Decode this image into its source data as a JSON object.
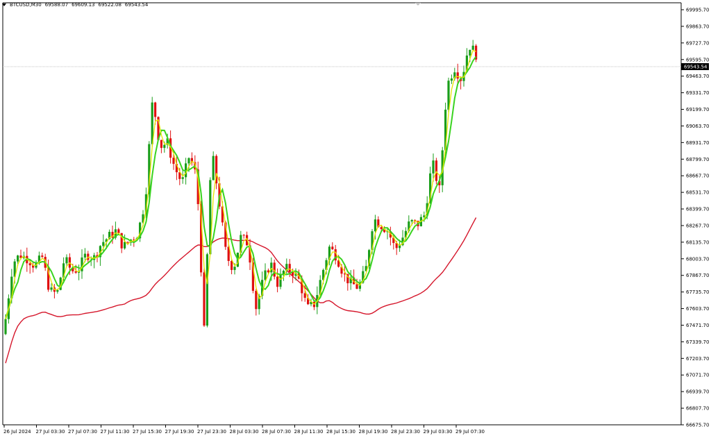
{
  "header": {
    "symbol": "BTCUSD,M30",
    "open": "69588.07",
    "high": "69609.13",
    "low": "69522.08",
    "close": "69543.54"
  },
  "colors": {
    "bull": "#1a9e1a",
    "bear": "#e01010",
    "ma_fast_yellow": "#e6e600",
    "ma_fast_green": "#39d31f",
    "ma_slow": "#d5152a",
    "grid": "#c8c8c8",
    "price_tag": "#000000"
  },
  "chart_data": {
    "type": "candlestick",
    "y_ticks": [
      "69995.70",
      "69863.70",
      "69727.70",
      "69595.70",
      "69463.70",
      "69331.70",
      "69199.70",
      "69063.70",
      "68931.70",
      "68799.70",
      "68667.70",
      "68531.70",
      "68399.70",
      "68267.70",
      "68135.70",
      "68003.70",
      "67867.70",
      "67735.70",
      "67603.70",
      "67471.70",
      "67339.70",
      "67203.70",
      "67071.70",
      "66939.70",
      "66807.70",
      "66675.70"
    ],
    "x_ticks": [
      "26 Jul 2024",
      "27 Jul 03:30",
      "27 Jul 07:30",
      "27 Jul 11:30",
      "27 Jul 15:30",
      "27 Jul 19:30",
      "27 Jul 23:30",
      "28 Jul 03:30",
      "28 Jul 07:30",
      "28 Jul 11:30",
      "28 Jul 15:30",
      "28 Jul 19:30",
      "28 Jul 23:30",
      "29 Jul 03:30",
      "29 Jul 07:30"
    ],
    "ylim": [
      66660,
      70010
    ],
    "current_price": "69543.54",
    "close_path": [
      67500,
      67950,
      68010,
      67980,
      67920,
      67990,
      67720,
      67700,
      67980,
      67880,
      67900,
      68020,
      67980,
      68100,
      68150,
      68200,
      68070,
      68130,
      68180,
      68450,
      69250,
      68870,
      68900,
      68700,
      68580,
      68800,
      68620,
      67400,
      68850,
      68450,
      68000,
      67900,
      68150,
      68100,
      67580,
      67800,
      67950,
      67780,
      67900,
      67880,
      67800,
      67580,
      67620,
      67850,
      68070,
      68000,
      67850,
      67780,
      67750,
      67900,
      68300,
      68250,
      68200,
      68050,
      68150,
      68270,
      68250,
      68330,
      68750,
      68520,
      69350,
      69500,
      69400,
      69680,
      69600
    ],
    "bullish_indices": [
      1,
      2,
      5,
      8,
      11,
      13,
      14,
      15,
      17,
      18,
      19,
      20,
      22,
      25,
      28,
      32,
      36,
      38,
      43,
      44,
      49,
      50,
      52,
      54,
      55,
      57,
      58,
      60,
      61,
      63
    ]
  }
}
